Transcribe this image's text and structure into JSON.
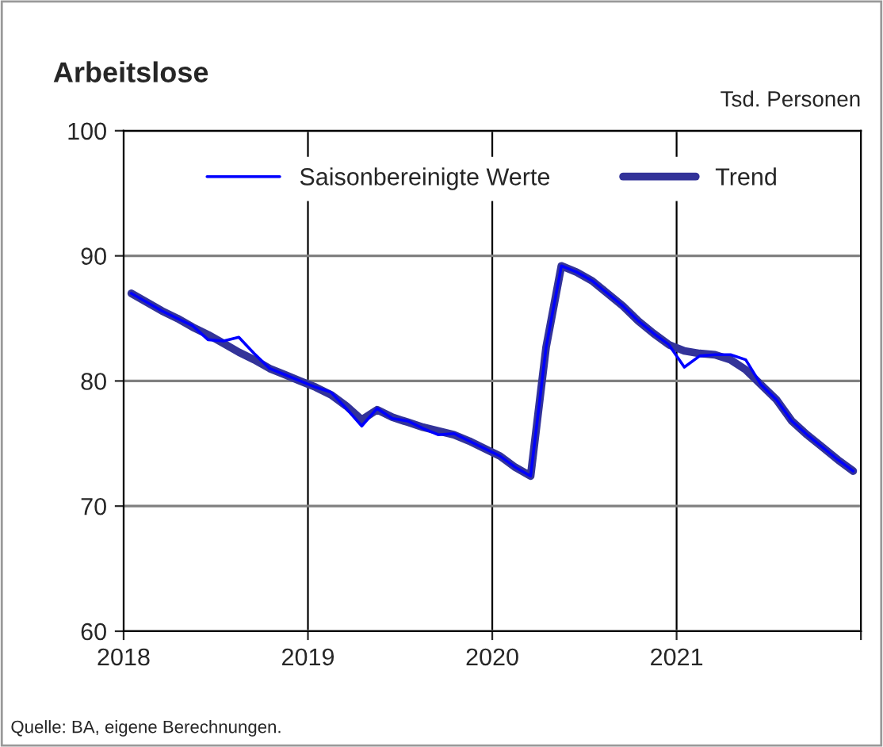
{
  "chart_data": {
    "type": "line",
    "title": "Arbeitslose",
    "ylabel": "Tsd. Personen",
    "annotations": [
      "Quelle: BA, eigene Berechnungen."
    ],
    "x": [
      2018.042,
      2018.125,
      2018.208,
      2018.292,
      2018.375,
      2018.458,
      2018.542,
      2018.625,
      2018.708,
      2018.792,
      2018.875,
      2018.958,
      2019.042,
      2019.125,
      2019.208,
      2019.292,
      2019.375,
      2019.458,
      2019.542,
      2019.625,
      2019.708,
      2019.792,
      2019.875,
      2019.958,
      2020.042,
      2020.125,
      2020.208,
      2020.292,
      2020.375,
      2020.458,
      2020.542,
      2020.625,
      2020.708,
      2020.792,
      2020.875,
      2020.958,
      2021.042,
      2021.125,
      2021.208,
      2021.292,
      2021.375,
      2021.458,
      2021.542,
      2021.625,
      2021.708,
      2021.792,
      2021.875,
      2021.958
    ],
    "series": [
      {
        "name": "Saisonbereinigte Werte",
        "color": "#0000ff",
        "values": [
          87.0,
          86.3,
          85.6,
          85.0,
          84.4,
          83.3,
          83.2,
          83.5,
          82.2,
          81.0,
          80.5,
          80.0,
          79.5,
          79.1,
          77.8,
          76.4,
          77.8,
          77.0,
          76.8,
          76.2,
          75.7,
          75.8,
          75.2,
          74.6,
          74.0,
          73.1,
          72.4,
          82.7,
          89.2,
          88.7,
          88.0,
          87.0,
          86.0,
          84.8,
          83.8,
          82.9,
          81.1,
          82.0,
          82.1,
          82.1,
          81.7,
          79.7,
          78.5,
          76.8,
          75.7,
          74.7,
          73.7,
          72.8
        ]
      },
      {
        "name": "Trend",
        "color": "#333399",
        "values": [
          87.0,
          86.3,
          85.6,
          85.0,
          84.3,
          83.7,
          83.0,
          82.3,
          81.7,
          81.0,
          80.5,
          80.0,
          79.5,
          78.9,
          78.0,
          76.9,
          77.7,
          77.1,
          76.7,
          76.3,
          76.0,
          75.7,
          75.2,
          74.6,
          74.0,
          73.1,
          72.4,
          82.7,
          89.2,
          88.7,
          88.0,
          87.0,
          86.0,
          84.8,
          83.8,
          82.9,
          82.4,
          82.2,
          82.1,
          81.7,
          80.9,
          79.7,
          78.5,
          76.8,
          75.7,
          74.7,
          73.7,
          72.8
        ]
      }
    ],
    "xlim": [
      2018,
      2022
    ],
    "xticks": [
      2018,
      2019,
      2020,
      2021,
      {
        "value": 2022,
        "label": null
      }
    ],
    "ylim": [
      60,
      100
    ],
    "yticks": [
      60,
      70,
      80,
      90,
      100
    ],
    "grid": true,
    "legend": "top",
    "marker": "none",
    "line_style": "solid"
  }
}
